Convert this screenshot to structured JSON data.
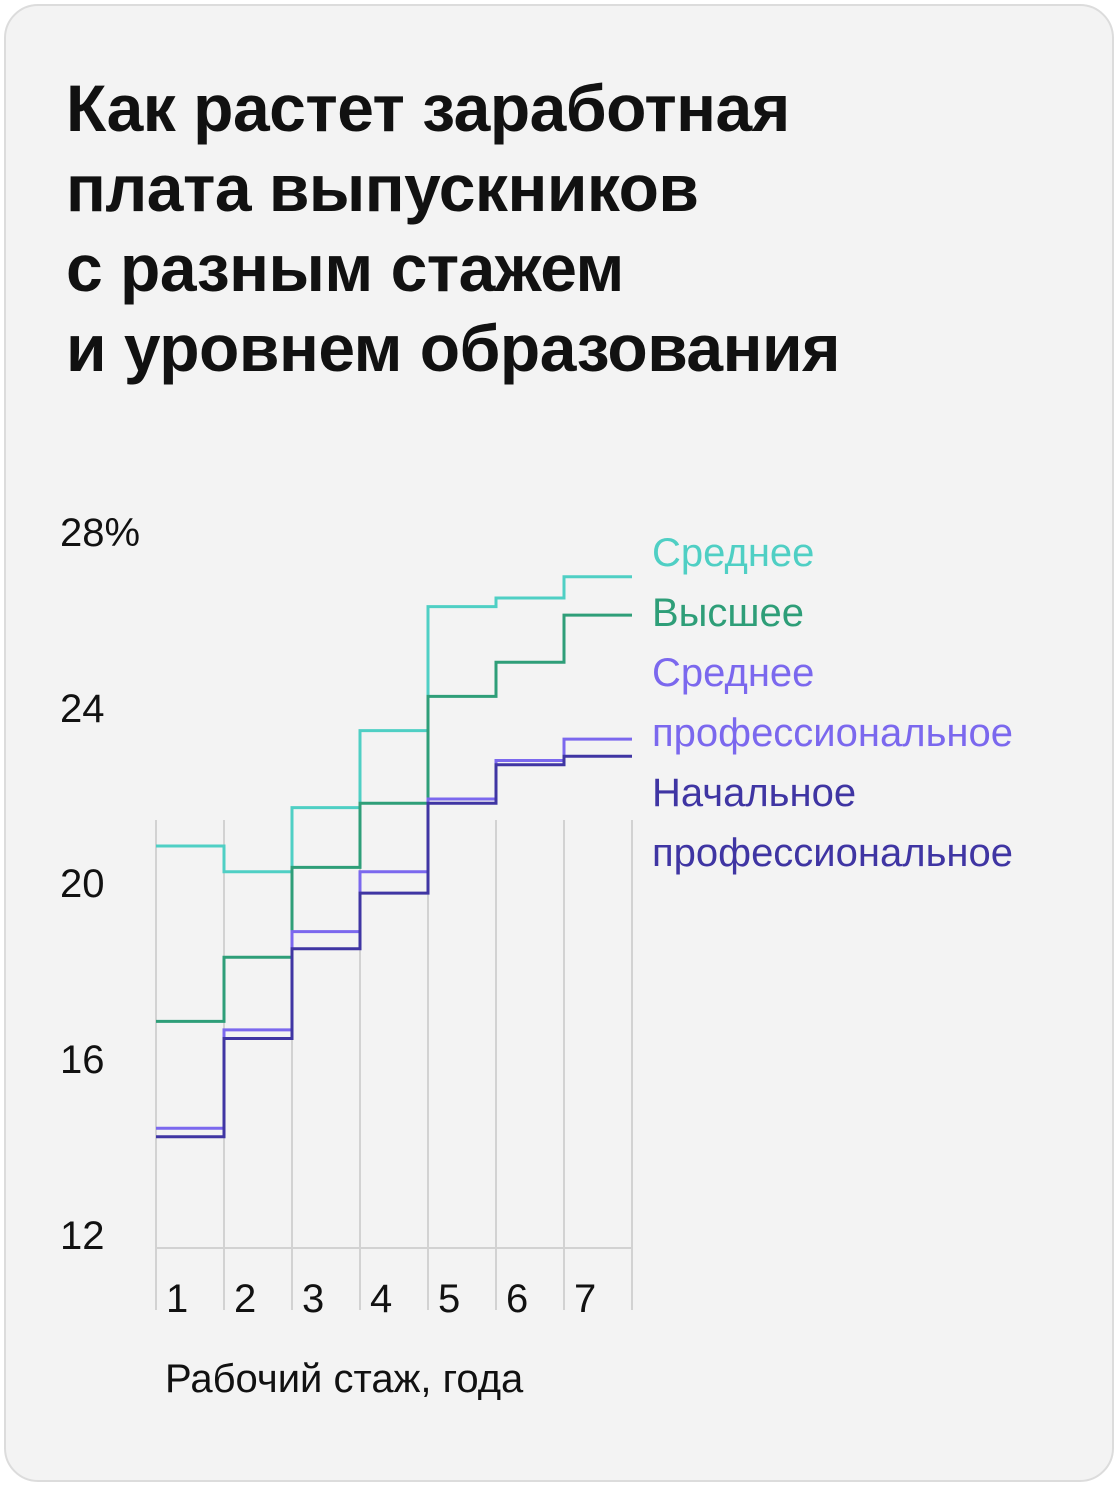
{
  "title_lines": [
    "Как растет заработная",
    "плата выпускников",
    "с разным стажем",
    "и уровнем образования"
  ],
  "chart_data": {
    "type": "line",
    "step": "post",
    "title": "Как растет заработная плата выпускников с разным стажем и уровнем образования",
    "xlabel": "Рабочий стаж, года",
    "ylabel": "",
    "x": [
      1,
      2,
      3,
      4,
      5,
      6,
      7
    ],
    "x_tick_labels": [
      "1",
      "2",
      "3",
      "4",
      "5",
      "6",
      "7"
    ],
    "y_tick_labels": [
      "28%",
      "24",
      "20",
      "16",
      "12"
    ],
    "y_ticks": [
      28,
      24,
      20,
      16,
      12
    ],
    "ylim": [
      11.7,
      28
    ],
    "grid": "vertical",
    "legend_placement": "right",
    "series": [
      {
        "name": "Среднее",
        "color": "#4fcfc4",
        "values": [
          21.1,
          20.5,
          22.0,
          23.8,
          26.7,
          26.9,
          27.4
        ]
      },
      {
        "name": "Высшее",
        "color": "#2e9e78",
        "values": [
          17.0,
          18.5,
          20.6,
          22.1,
          24.6,
          25.4,
          26.5
        ]
      },
      {
        "name": "Среднее профессиональное",
        "legend_lines": [
          "Среднее",
          "профессиональное"
        ],
        "color": "#7b68ee",
        "values": [
          14.5,
          16.8,
          19.1,
          20.5,
          22.2,
          23.1,
          23.6
        ]
      },
      {
        "name": "Начальное профессиональное",
        "legend_lines": [
          "Начальное",
          "профессиональное"
        ],
        "color": "#3f35a3",
        "values": [
          14.3,
          16.6,
          18.7,
          20.0,
          22.1,
          23.0,
          23.2
        ]
      }
    ]
  }
}
